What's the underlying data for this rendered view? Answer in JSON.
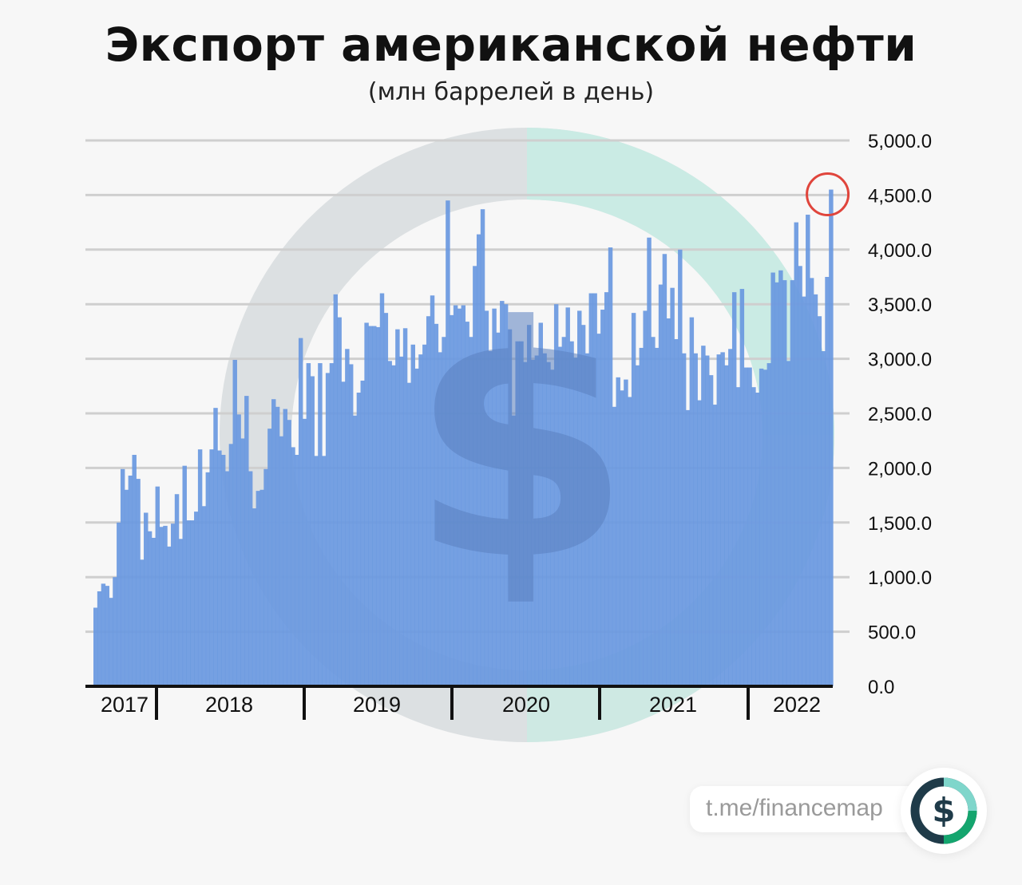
{
  "title": "Экспорт американской нефти",
  "subtitle": "(млн баррелей в день)",
  "footer": {
    "link": "t.me/financemap",
    "logo_icon": "dollar-ring-logo-icon"
  },
  "colors": {
    "bar": "#6a99e0",
    "grid": "#cfcfcf",
    "axis": "#111111",
    "highlight": "#e0453c",
    "watermark_gray": "#d4d9dc",
    "watermark_teal": "#c8ece4",
    "watermark_dollar": "#5a80c0"
  },
  "chart_data": {
    "type": "bar",
    "y_ticks": [
      "5,000.0",
      "4,500.0",
      "4,000.0",
      "3,500.0",
      "3,000.0",
      "2,500.0",
      "2,000.0",
      "1,500.0",
      "1,000.0",
      "500.0",
      "0.0"
    ],
    "ylim": [
      0,
      5000
    ],
    "grid": true,
    "y_axis_position": "right",
    "x_labels": [
      "2017",
      "2018",
      "2019",
      "2020",
      "2021",
      "2022"
    ],
    "highlight": "last bar circled (max ~4,550)",
    "values": [
      720,
      870,
      940,
      920,
      810,
      1000,
      1500,
      1990,
      1800,
      1930,
      2120,
      1900,
      1160,
      1590,
      1420,
      1360,
      1830,
      1460,
      1470,
      1280,
      1490,
      1760,
      1350,
      2020,
      1520,
      1520,
      1600,
      2170,
      1650,
      1960,
      2170,
      2550,
      2160,
      2120,
      1970,
      2220,
      2990,
      2490,
      2270,
      2660,
      1970,
      1630,
      1790,
      1800,
      1990,
      2360,
      2630,
      2560,
      2290,
      2540,
      2440,
      2190,
      2120,
      3190,
      2450,
      2960,
      2840,
      2110,
      2960,
      2110,
      2870,
      2960,
      3590,
      3380,
      2790,
      3090,
      2950,
      2480,
      2690,
      2800,
      3330,
      3300,
      3300,
      3290,
      3600,
      3420,
      2980,
      2940,
      3270,
      3020,
      3280,
      2780,
      3130,
      2910,
      3040,
      3130,
      3390,
      3580,
      3320,
      3060,
      3200,
      4450,
      3400,
      3490,
      3460,
      3490,
      3340,
      3200,
      3850,
      4140,
      4370,
      3440,
      3070,
      3460,
      3240,
      3530,
      3500,
      3270,
      2480,
      3160,
      3160,
      2970,
      3310,
      2990,
      3030,
      3330,
      3050,
      2970,
      2900,
      3500,
      3110,
      3200,
      3470,
      3160,
      3010,
      3440,
      3310,
      3050,
      3600,
      3600,
      3230,
      3450,
      3610,
      4020,
      2560,
      2830,
      2710,
      2810,
      2650,
      3420,
      2940,
      3100,
      3440,
      4110,
      3200,
      3100,
      3680,
      3960,
      3370,
      3650,
      3180,
      4000,
      3050,
      2530,
      3380,
      3050,
      2620,
      3120,
      3030,
      2850,
      2580,
      3040,
      3060,
      2940,
      3090,
      3610,
      2740,
      3640,
      2920,
      2920,
      2740,
      2690,
      2910,
      2900,
      2960,
      3790,
      3700,
      3810,
      3720,
      2980,
      3720,
      4250,
      3850,
      3570,
      4320,
      3740,
      3590,
      3390,
      3070,
      3750,
      4550
    ]
  }
}
